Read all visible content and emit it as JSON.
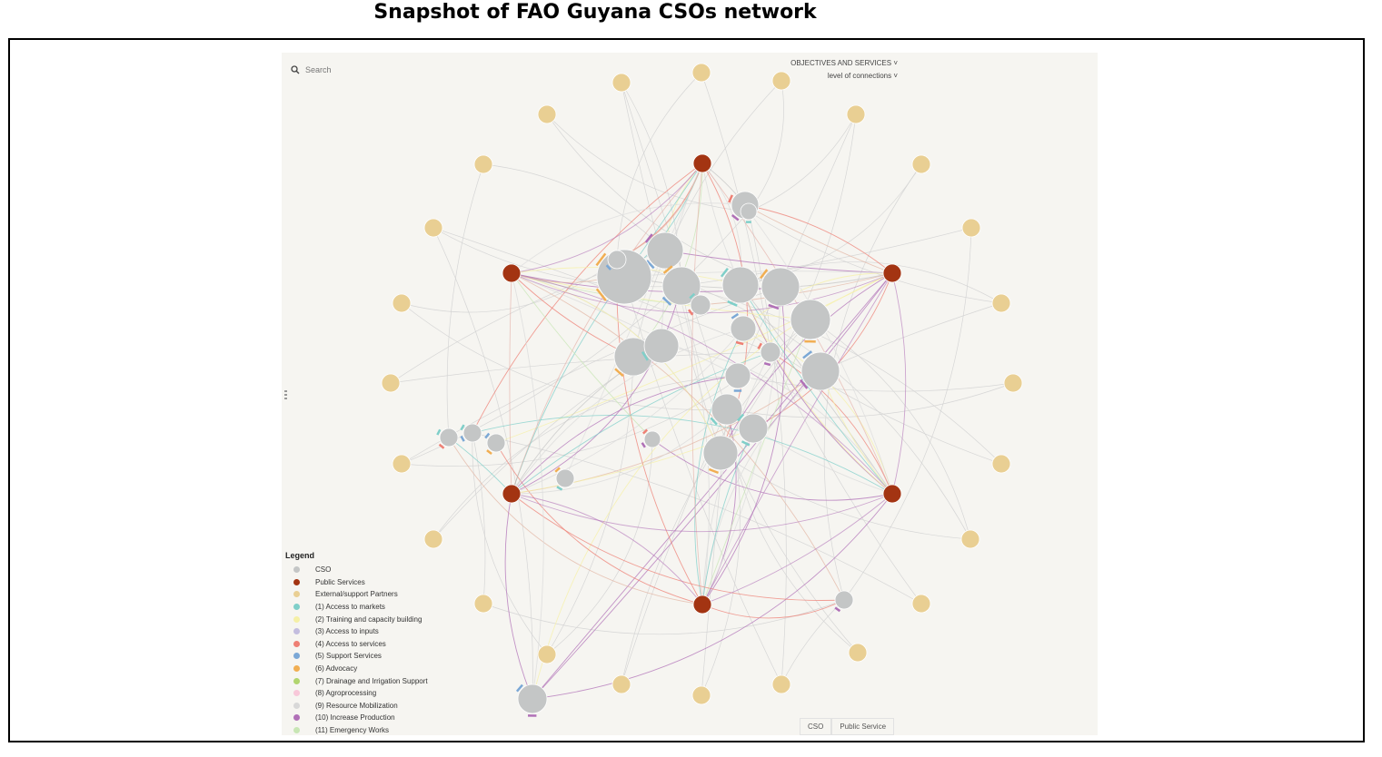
{
  "title": "Snapshot of FAO Guyana CSOs network",
  "search": {
    "placeholder": "Search"
  },
  "controls": {
    "objectives": "OBJECTIVES AND SERVICES ˅",
    "connections": "level of connections ˅"
  },
  "legend": {
    "heading": "Legend",
    "items": [
      {
        "label": "CSO",
        "color": "#c4c6c6"
      },
      {
        "label": "Public Services",
        "color": "#a33412"
      },
      {
        "label": "External/support Partners",
        "color": "#e9cf93"
      },
      {
        "label": "(1) Access to markets",
        "color": "#7fcfc9"
      },
      {
        "label": "(2) Training and capacity building",
        "color": "#f5f0a6"
      },
      {
        "label": "(3) Access to inputs",
        "color": "#c3bddf"
      },
      {
        "label": "(4) Access to services",
        "color": "#ee7f74"
      },
      {
        "label": "(5) Support Services",
        "color": "#7ba8d6"
      },
      {
        "label": "(6) Advocacy",
        "color": "#f1ae52"
      },
      {
        "label": "(7) Drainage and Irrigation Support",
        "color": "#b1d56e"
      },
      {
        "label": "(8) Agroprocessing",
        "color": "#f8c8d9"
      },
      {
        "label": "(9) Resource Mobilization",
        "color": "#d8d8d8"
      },
      {
        "label": "(10) Increase Production",
        "color": "#b070b7"
      },
      {
        "label": "(11) Emergency Works",
        "color": "#c8e6b5"
      }
    ]
  },
  "tabs": [
    "CSO",
    "Public Service"
  ],
  "colors": {
    "cso": "#c4c6c6",
    "public": "#a33412",
    "partner": "#e9cf93",
    "bg": "#f6f5f1"
  }
}
